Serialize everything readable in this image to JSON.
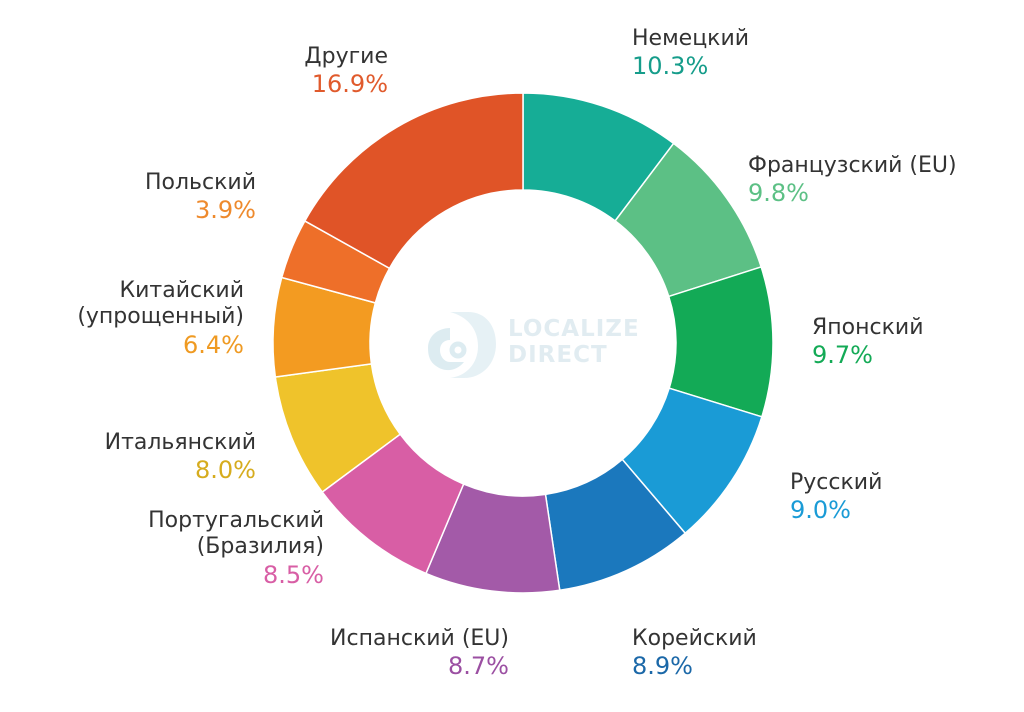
{
  "watermark": {
    "line1": "LOCALIZE",
    "line2": "DIRECT"
  },
  "chart_data": {
    "type": "pie",
    "donut": true,
    "start_angle_deg": 0,
    "direction": "clockwise",
    "slices": [
      {
        "label": "Немецкий",
        "value": 10.3,
        "display": "10.3%",
        "color": "#16ad96",
        "label_color": "#169d8b"
      },
      {
        "label": "Французский (EU)",
        "value": 9.8,
        "display": "9.8%",
        "color": "#5cc085",
        "label_color": "#5cc085"
      },
      {
        "label": "Японский",
        "value": 9.7,
        "display": "9.7%",
        "color": "#13aa56",
        "label_color": "#13aa56"
      },
      {
        "label": "Русский",
        "value": 9.0,
        "display": "9.0%",
        "color": "#1a9bd6",
        "label_color": "#1a9bd6"
      },
      {
        "label": "Корейский",
        "value": 8.9,
        "display": "8.9%",
        "color": "#1b78bd",
        "label_color": "#1b68a8"
      },
      {
        "label": "Испанский (EU)",
        "value": 8.7,
        "display": "8.7%",
        "color": "#a35aa8",
        "label_color": "#9b4fa2"
      },
      {
        "label": "Португальский (Бразилия)",
        "value": 8.5,
        "display": "8.5%",
        "color": "#d85ea5",
        "label_color": "#d85ea5"
      },
      {
        "label": "Итальянский",
        "value": 8.0,
        "display": "8.0%",
        "color": "#efc32b",
        "label_color": "#d6ac1e"
      },
      {
        "label": "Китайский (упрощенный)",
        "value": 6.4,
        "display": "6.4%",
        "color": "#f39b21",
        "label_color": "#ef9a22"
      },
      {
        "label": "Польский",
        "value": 3.9,
        "display": "3.9%",
        "color": "#ee6f29",
        "label_color": "#ee8a2d"
      },
      {
        "label": "Другие",
        "value": 16.9,
        "display": "16.9%",
        "color": "#e05427",
        "label_color": "#e05a2c"
      }
    ]
  },
  "labels": [
    {
      "name_lines": [
        "Немецкий"
      ],
      "pct": "10.3%",
      "color": "#169d8b"
    },
    {
      "name_lines": [
        "Французский (EU)"
      ],
      "pct": "9.8%",
      "color": "#5cc085"
    },
    {
      "name_lines": [
        "Японский"
      ],
      "pct": "9.7%",
      "color": "#13aa56"
    },
    {
      "name_lines": [
        "Русский"
      ],
      "pct": "9.0%",
      "color": "#1a9bd6"
    },
    {
      "name_lines": [
        "Корейский"
      ],
      "pct": "8.9%",
      "color": "#1b68a8"
    },
    {
      "name_lines": [
        "Испанский (EU)"
      ],
      "pct": "8.7%",
      "color": "#9b4fa2"
    },
    {
      "name_lines": [
        "Португальский",
        "(Бразилия)"
      ],
      "pct": "8.5%",
      "color": "#d85ea5"
    },
    {
      "name_lines": [
        "Итальянский"
      ],
      "pct": "8.0%",
      "color": "#d6ac1e"
    },
    {
      "name_lines": [
        "Китайский",
        "(упрощенный)"
      ],
      "pct": "6.4%",
      "color": "#ef9a22"
    },
    {
      "name_lines": [
        "Польский"
      ],
      "pct": "3.9%",
      "color": "#ee8a2d"
    },
    {
      "name_lines": [
        "Другие"
      ],
      "pct": "16.9%",
      "color": "#e05a2c"
    }
  ]
}
